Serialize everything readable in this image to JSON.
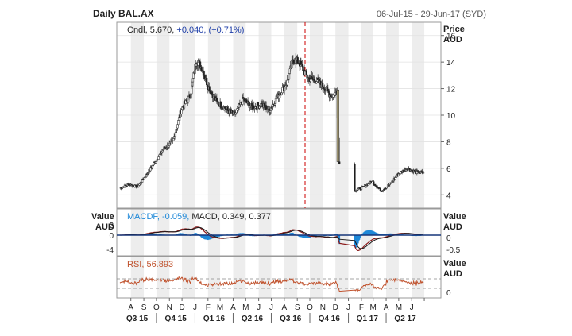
{
  "header": {
    "title": "Daily BAL.AX",
    "date_range": "06-Jul-15 - 29-Jun-17 (SYD)"
  },
  "price_panel": {
    "axis_title_1": "Price",
    "axis_title_2": "AUD",
    "legend_name": "Cndl,",
    "legend_value": "5.670,",
    "legend_change": "+0.040,",
    "legend_pct": "(+0.71%)"
  },
  "macd_panel": {
    "left_title_1": "Value",
    "left_title_2": "AUD",
    "right_title_1": "Value",
    "right_title_2": "AUD",
    "legend_macdf": "MACDF, -0.059,",
    "legend_macd": "MACD, 0.349, 0.377"
  },
  "rsi_panel": {
    "right_title_1": "Value",
    "right_title_2": "AUD",
    "legend": "RSI, 56.893"
  },
  "colors": {
    "candle_up": "#3a3a3a",
    "macd_hist": "#1e88d8",
    "macd_line": "#8b1a1a",
    "signal_line": "#1a1a1a",
    "rsi_line": "#c0522d",
    "cursor": "#cc0000",
    "band": "#ededed"
  },
  "chart_data": {
    "type": "line",
    "price": {
      "ylim": [
        3,
        17
      ],
      "ticks": [
        "4",
        "6",
        "8",
        "10",
        "12",
        "14",
        "16"
      ],
      "series": [
        {
          "x": "2015-07-06",
          "y": 4.5
        },
        {
          "x": "2015-07-27",
          "y": 4.8
        },
        {
          "x": "2015-08-17",
          "y": 4.6
        },
        {
          "x": "2015-09-07",
          "y": 5.5
        },
        {
          "x": "2015-09-28",
          "y": 6.5
        },
        {
          "x": "2015-10-19",
          "y": 7.5
        },
        {
          "x": "2015-11-09",
          "y": 8.0
        },
        {
          "x": "2015-11-30",
          "y": 10.5
        },
        {
          "x": "2015-12-21",
          "y": 11.5
        },
        {
          "x": "2016-01-04",
          "y": 14.2
        },
        {
          "x": "2016-01-18",
          "y": 13.5
        },
        {
          "x": "2016-02-01",
          "y": 12.2
        },
        {
          "x": "2016-02-22",
          "y": 11.0
        },
        {
          "x": "2016-03-14",
          "y": 10.5
        },
        {
          "x": "2016-04-04",
          "y": 10.0
        },
        {
          "x": "2016-04-25",
          "y": 11.2
        },
        {
          "x": "2016-05-16",
          "y": 10.6
        },
        {
          "x": "2016-06-06",
          "y": 10.8
        },
        {
          "x": "2016-06-27",
          "y": 10.4
        },
        {
          "x": "2016-07-18",
          "y": 11.5
        },
        {
          "x": "2016-08-08",
          "y": 12.5
        },
        {
          "x": "2016-08-22",
          "y": 14.2
        },
        {
          "x": "2016-09-05",
          "y": 14.0
        },
        {
          "x": "2016-09-26",
          "y": 12.8
        },
        {
          "x": "2016-10-17",
          "y": 12.6
        },
        {
          "x": "2016-11-07",
          "y": 12.0
        },
        {
          "x": "2016-11-21",
          "y": 11.4
        },
        {
          "x": "2016-12-05",
          "y": 11.8
        },
        {
          "x": "2016-12-09",
          "y": 6.5
        },
        {
          "x": "2016-12-12",
          "y": 6.4
        },
        {
          "x": "2017-01-16",
          "y": 4.3
        },
        {
          "x": "2017-02-06",
          "y": 4.6
        },
        {
          "x": "2017-02-27",
          "y": 5.0
        },
        {
          "x": "2017-03-20",
          "y": 4.3
        },
        {
          "x": "2017-04-10",
          "y": 4.8
        },
        {
          "x": "2017-05-01",
          "y": 5.6
        },
        {
          "x": "2017-05-22",
          "y": 6.0
        },
        {
          "x": "2017-06-12",
          "y": 5.7
        },
        {
          "x": "2017-06-29",
          "y": 5.67
        }
      ]
    },
    "macd": {
      "ylim": [
        -0.9,
        0.9
      ],
      "left_ticks": [
        "2",
        "0",
        "-4"
      ],
      "right_ticks": [
        "0",
        "-0.5"
      ]
    },
    "rsi": {
      "right_ticks": [
        "0"
      ]
    },
    "x_axis": {
      "months": [
        "A",
        "S",
        "O",
        "N",
        "D",
        "J",
        "F",
        "M",
        "A",
        "M",
        "J",
        "J",
        "A",
        "S",
        "O",
        "N",
        "D",
        "J",
        "F",
        "M",
        "A",
        "M",
        "J"
      ],
      "quarters": [
        "Q3 15",
        "Q4 15",
        "Q1 16",
        "Q2 16",
        "Q3 16",
        "Q4 16",
        "Q1 17",
        "Q2 17"
      ]
    }
  }
}
